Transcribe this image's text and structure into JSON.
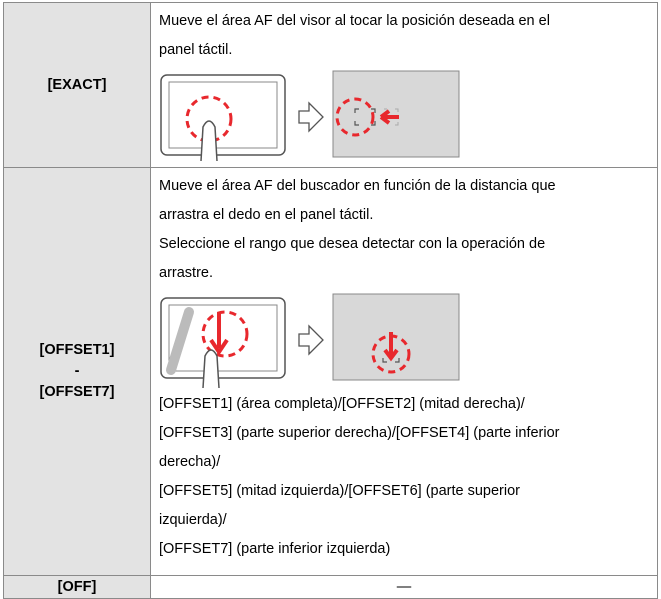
{
  "table": {
    "rows": [
      {
        "label": [
          "[EXACT]"
        ],
        "lines": [
          "Mueve el área AF del visor al tocar la posición deseada en el",
          "panel táctil."
        ],
        "notes": []
      },
      {
        "label": [
          "[OFFSET1]",
          "-",
          "[OFFSET7]"
        ],
        "lines": [
          "Mueve el área AF del buscador en función de la distancia que",
          "arrastra el dedo en el panel táctil.",
          "Seleccione el rango que desea detectar con la operación de",
          "arrastre."
        ],
        "notes": [
          "[OFFSET1] (área completa)/[OFFSET2] (mitad derecha)/",
          "[OFFSET3] (parte superior derecha)/[OFFSET4] (parte inferior",
          "derecha)/",
          "[OFFSET5] (mitad izquierda)/[OFFSET6] (parte superior",
          "izquierda)/",
          "[OFFSET7] (parte inferior izquierda)"
        ]
      },
      {
        "label": [
          "[OFF]"
        ],
        "lines": [
          "—"
        ],
        "notes": []
      }
    ]
  }
}
